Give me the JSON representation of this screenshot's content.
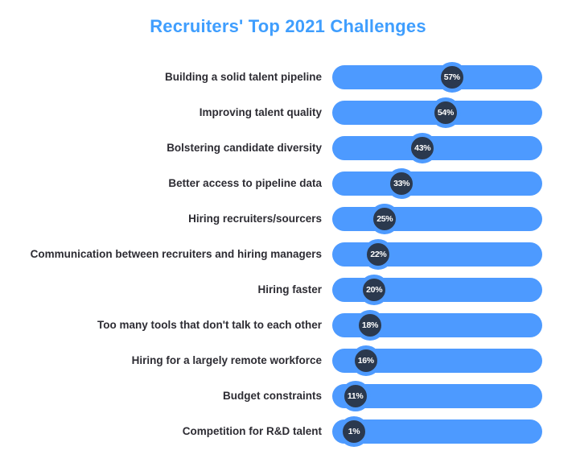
{
  "title": "Recruiters' Top 2021 Challenges",
  "colors": {
    "background": "#FFFFFF",
    "title_blue": "#3F9EFE",
    "bar_blue": "#4D9AFF",
    "marker_navy": "#2B394E",
    "marker_text": "#FFFFFF",
    "label_dark": "#2D2C33"
  },
  "chart_data": {
    "type": "bar",
    "orientation": "horizontal",
    "title": "Recruiters' Top 2021 Challenges",
    "categories": [
      "Building a solid talent pipeline",
      "Improving talent quality",
      "Bolstering candidate diversity",
      "Better access to pipeline data",
      "Hiring recruiters/sourcers",
      "Communication between recruiters and hiring managers",
      "Hiring faster",
      "Too many tools that don't talk to each other",
      "Hiring for a largely remote workforce",
      "Budget constraints",
      "Competition for R&D talent"
    ],
    "values": [
      57,
      54,
      43,
      33,
      25,
      22,
      20,
      18,
      16,
      11,
      1
    ],
    "value_labels": [
      "57%",
      "54%",
      "43%",
      "33%",
      "25%",
      "22%",
      "20%",
      "18%",
      "16%",
      "11%",
      "1%"
    ],
    "unit": "%",
    "xlim": [
      0,
      100
    ],
    "grid": false,
    "legend": false,
    "bar_style": "full-width rounded track with dark circular percentage marker positioned at value"
  }
}
